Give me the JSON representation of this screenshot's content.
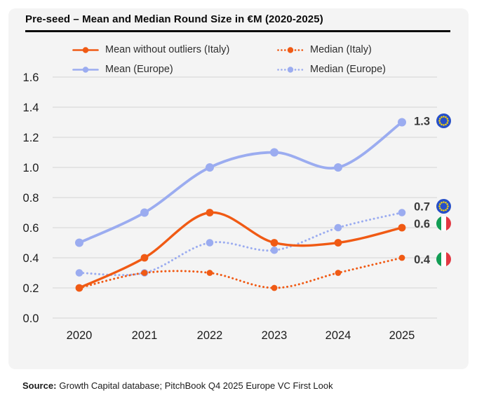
{
  "title": "Pre-seed – Mean and Median Round Size in €M (2020-2025)",
  "chart_data": {
    "type": "line",
    "title": "Pre-seed – Mean and Median Round Size in €M (2020-2025)",
    "x": [
      2020,
      2021,
      2022,
      2023,
      2024,
      2025
    ],
    "xticklabels": [
      "2020",
      "2021",
      "2022",
      "2023",
      "2024",
      "2025"
    ],
    "series": [
      {
        "name": "Mean without outliers (Italy)",
        "values": [
          0.2,
          0.4,
          0.7,
          0.5,
          0.5,
          0.6
        ],
        "color": "#F05A14",
        "line_style": "solid",
        "end_label": "0.6",
        "end_flag": "italy"
      },
      {
        "name": "Median (Italy)",
        "values": [
          0.2,
          0.3,
          0.3,
          0.2,
          0.3,
          0.4
        ],
        "color": "#F05A14",
        "line_style": "dotted",
        "end_label": "0.4",
        "end_flag": "italy"
      },
      {
        "name": "Mean (Europe)",
        "values": [
          0.5,
          0.7,
          1.0,
          1.1,
          1.0,
          1.3
        ],
        "color": "#9BACF0",
        "line_style": "solid",
        "end_label": "1.3",
        "end_flag": "eu"
      },
      {
        "name": "Median (Europe)",
        "values": [
          0.3,
          0.3,
          0.5,
          0.45,
          0.6,
          0.7
        ],
        "color": "#9BACF0",
        "line_style": "dotted",
        "end_label": "0.7",
        "end_flag": "eu"
      }
    ],
    "ylim": [
      0,
      1.6
    ],
    "yticks": [
      "0.0",
      "0.2",
      "0.4",
      "0.6",
      "0.8",
      "1.0",
      "1.2",
      "1.4",
      "1.6"
    ],
    "grid": true,
    "legend_position": "top"
  },
  "source": {
    "label": "Source:",
    "text": "Growth Capital database; PitchBook Q4 2025 Europe VC First Look"
  },
  "colors": {
    "orange": "#F05A14",
    "blue": "#9BACF0",
    "grid": "#DBDBDB",
    "card_bg": "#F4F4F4",
    "axis_label": "#1C1C1C",
    "end_label": "#3A3A3A",
    "eu_flag_blue": "#2750C8",
    "eu_flag_star": "#FFD800",
    "italy_green": "#129D54",
    "italy_red": "#E23842"
  }
}
